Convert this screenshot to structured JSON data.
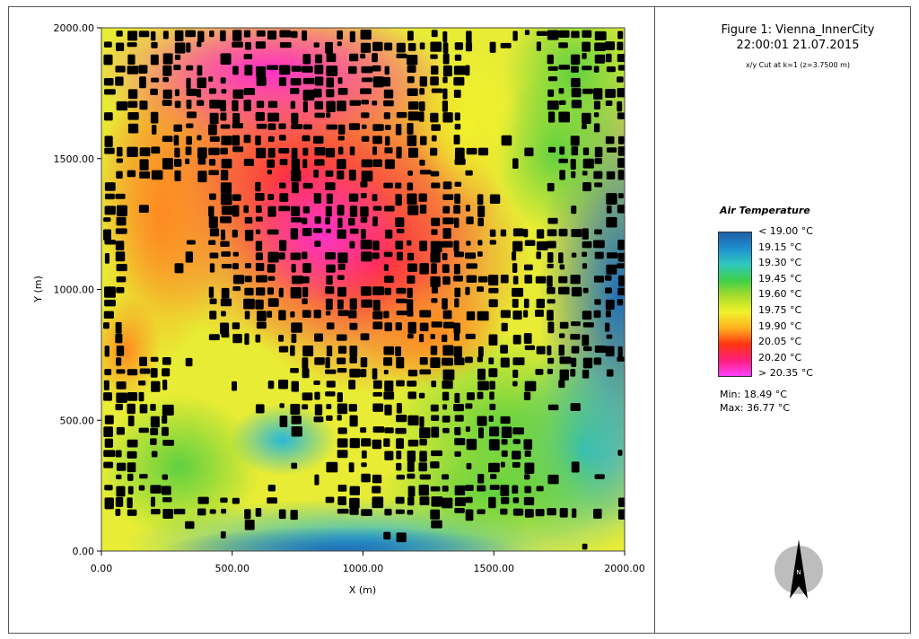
{
  "figure": {
    "title_line1": "Figure 1: Vienna_InnerCity",
    "title_line2": "22:00:01 21.07.2015",
    "subtitle": "x/y Cut at k=1 (z=3.7500 m)"
  },
  "chart_data": {
    "type": "heatmap",
    "xlabel": "X (m)",
    "ylabel": "Y (m)",
    "xlim": [
      0,
      2000
    ],
    "ylim": [
      0,
      2000
    ],
    "x_ticks": [
      0,
      500,
      1000,
      1500,
      2000
    ],
    "y_ticks": [
      0,
      500,
      1000,
      1500,
      2000
    ],
    "x_tick_labels": [
      "0.00",
      "500.00",
      "1000.00",
      "1500.00",
      "2000.00"
    ],
    "y_tick_labels": [
      "0.00",
      "500.00",
      "1000.00",
      "1500.00",
      "2000.00"
    ],
    "legend_title": "Air Temperature",
    "legend_labels": [
      "< 19.00 °C",
      "19.15 °C",
      "19.30 °C",
      "19.45 °C",
      "19.60 °C",
      "19.75 °C",
      "19.90 °C",
      "20.05 °C",
      "20.20 °C",
      "> 20.35 °C"
    ],
    "legend_colors": [
      "#1f5fa6",
      "#1e8fd0",
      "#2fc8c0",
      "#3fcf4a",
      "#a9dc2b",
      "#f2f22a",
      "#ffb020",
      "#ff3410",
      "#ff1e7a",
      "#ff40ff"
    ],
    "min_label": "Min: 18.49 °C",
    "max_label": "Max: 36.77 °C",
    "building_color": "#000000"
  },
  "north_arrow": {
    "label": "N",
    "icon": "north-arrow-icon"
  }
}
